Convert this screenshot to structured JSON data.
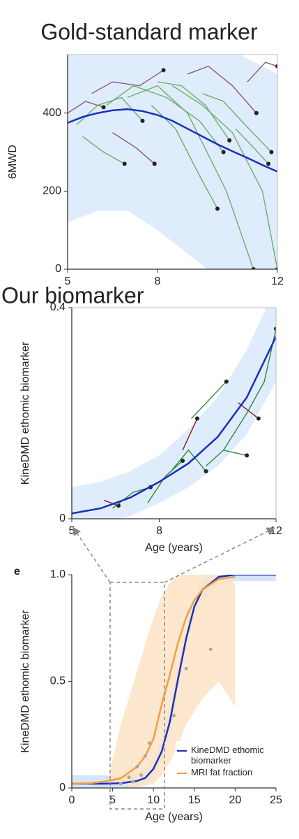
{
  "chart_data": [
    {
      "type": "line",
      "title": "Gold-standard marker",
      "ylabel": "6MWD",
      "xlim": [
        5,
        12
      ],
      "xticks": [
        5,
        8,
        12
      ],
      "ylim": [
        0,
        550
      ],
      "yticks": [
        0,
        200,
        400
      ],
      "frame": true,
      "end_markers": true,
      "band": {
        "color": "#d9e9fa",
        "x": [
          5,
          6,
          7,
          8,
          9,
          10,
          11,
          12
        ],
        "lower": [
          120,
          150,
          150,
          100,
          40,
          -20,
          -60,
          -80
        ],
        "upper": [
          620,
          650,
          660,
          650,
          620,
          580,
          540,
          500
        ]
      },
      "fit": {
        "color": "#1a2fc0",
        "x": [
          5,
          5.5,
          6,
          6.5,
          7,
          7.5,
          8,
          8.5,
          9,
          9.5,
          10,
          10.5,
          11,
          11.5,
          12
        ],
        "values": [
          375,
          390,
          400,
          407,
          410,
          405,
          395,
          380,
          360,
          340,
          320,
          302,
          285,
          267,
          250
        ]
      },
      "series": [
        {
          "color": "#8b5a7c",
          "x": [
            5,
            5.6,
            6.2
          ],
          "values": [
            400,
            430,
            415
          ]
        },
        {
          "color": "#6cae6c",
          "x": [
            5.3,
            6,
            6.8,
            7.5
          ],
          "values": [
            370,
            420,
            440,
            380
          ]
        },
        {
          "color": "#8b5a7c",
          "x": [
            5.8,
            6.5,
            7.4,
            8.2
          ],
          "values": [
            450,
            480,
            470,
            510
          ]
        },
        {
          "color": "#6cae6c",
          "x": [
            6.3,
            7.2,
            8.3,
            9.4,
            10.2
          ],
          "values": [
            420,
            470,
            440,
            380,
            300
          ]
        },
        {
          "color": "#6cae6c",
          "x": [
            7,
            8,
            9,
            10.3,
            11.2
          ],
          "values": [
            440,
            470,
            400,
            200,
            0
          ]
        },
        {
          "color": "#6cae6c",
          "x": [
            8,
            8.8,
            9.6,
            10.4
          ],
          "values": [
            480,
            470,
            420,
            330
          ]
        },
        {
          "color": "#8b5a7c",
          "x": [
            9,
            9.7,
            10.5,
            11.3
          ],
          "values": [
            500,
            520,
            470,
            400
          ]
        },
        {
          "color": "#6cae6c",
          "x": [
            9.5,
            10.2,
            10.8,
            11.8
          ],
          "values": [
            450,
            430,
            380,
            300
          ]
        },
        {
          "color": "#6cae6c",
          "x": [
            7.8,
            8.6,
            9.4,
            10
          ],
          "values": [
            420,
            360,
            240,
            155
          ]
        },
        {
          "color": "#8b5a7c",
          "x": [
            11,
            11.6,
            12
          ],
          "values": [
            480,
            530,
            520
          ]
        },
        {
          "color": "#6cae6c",
          "x": [
            5.5,
            6.2,
            6.9
          ],
          "values": [
            340,
            300,
            270
          ]
        },
        {
          "color": "#8b5a7c",
          "x": [
            6.5,
            7.3,
            7.9
          ],
          "values": [
            350,
            310,
            270
          ]
        },
        {
          "color": "#6cae6c",
          "x": [
            10.6,
            11.1,
            11.7
          ],
          "values": [
            360,
            320,
            270
          ]
        },
        {
          "color": "#6cae6c",
          "x": [
            8.5,
            9.5,
            10.5,
            11.5,
            12
          ],
          "values": [
            470,
            420,
            350,
            200,
            0
          ]
        }
      ]
    },
    {
      "type": "line",
      "title": "Our biomarker",
      "ylabel": "KineDMD ethomic biomarker",
      "xlabel": "Age (years)",
      "xlim": [
        5,
        12
      ],
      "xticks": [
        5,
        8,
        12
      ],
      "ylim": [
        0,
        0.4
      ],
      "yticks": [
        0,
        0.4
      ],
      "frame": true,
      "end_markers": true,
      "band": {
        "color": "#d9e9fa",
        "x": [
          5,
          6,
          7,
          8,
          9,
          10,
          11,
          12
        ],
        "lower": [
          -0.02,
          -0.01,
          0.005,
          0.03,
          0.06,
          0.1,
          0.16,
          0.26
        ],
        "upper": [
          0.06,
          0.07,
          0.09,
          0.12,
          0.17,
          0.23,
          0.32,
          0.44
        ]
      },
      "fit": {
        "color": "#1a2fc0",
        "x": [
          5,
          6,
          7,
          8,
          9,
          10,
          11,
          12
        ],
        "values": [
          0.01,
          0.02,
          0.04,
          0.07,
          0.105,
          0.155,
          0.23,
          0.345
        ]
      },
      "series": [
        {
          "color": "#8b1a1a",
          "x": [
            6.1,
            6.6
          ],
          "values": [
            0.035,
            0.025
          ]
        },
        {
          "color": "#2e8b2e",
          "x": [
            6.4,
            7.1,
            7.7
          ],
          "values": [
            0.02,
            0.05,
            0.06
          ]
        },
        {
          "color": "#2e8b2e",
          "x": [
            7.6,
            8.2,
            8.8
          ],
          "values": [
            0.03,
            0.08,
            0.11
          ]
        },
        {
          "color": "#2e8b2e",
          "x": [
            8.4,
            9,
            9.6
          ],
          "values": [
            0.09,
            0.13,
            0.09
          ]
        },
        {
          "color": "#8b1a1a",
          "x": [
            8.8,
            9.3
          ],
          "values": [
            0.13,
            0.19
          ]
        },
        {
          "color": "#2e8b2e",
          "x": [
            9.1,
            10.3
          ],
          "values": [
            0.19,
            0.26
          ]
        },
        {
          "color": "#2e8b2e",
          "x": [
            9.6,
            10.2,
            11
          ],
          "values": [
            0.1,
            0.13,
            0.12
          ]
        },
        {
          "color": "#8b1a1a",
          "x": [
            10.7,
            11.4
          ],
          "values": [
            0.22,
            0.19
          ]
        },
        {
          "color": "#2e8b2e",
          "x": [
            10.2,
            11,
            11.6,
            12
          ],
          "values": [
            0.13,
            0.2,
            0.26,
            0.36
          ]
        }
      ]
    },
    {
      "type": "line",
      "panel_label": "e",
      "ylabel": "KineDMD ethomic biomarker",
      "xlabel": "Age (years)",
      "xlim": [
        0,
        25
      ],
      "xticks": [
        0,
        5,
        10,
        15,
        20,
        25
      ],
      "ylim": [
        0,
        1
      ],
      "yticks": [
        0,
        0.5,
        {
          "value": 1,
          "label": "1.0"
        }
      ],
      "frame": false,
      "end_markers": false,
      "points": {
        "color": "#a8a8a8",
        "x": [
          6,
          7,
          7.5,
          8,
          8.5,
          9,
          9.5,
          12.5,
          14,
          17
        ],
        "values": [
          0.02,
          0.05,
          0.03,
          0.1,
          0.06,
          0.15,
          0.21,
          0.34,
          0.56,
          0.65
        ]
      },
      "series": [
        {
          "name": "KineDMD ethomic biomarker",
          "color": "#1a2fc0",
          "x": [
            0,
            2,
            4,
            6,
            8,
            9,
            10,
            11,
            12,
            13,
            14,
            15,
            16,
            18,
            20,
            25
          ],
          "values": [
            0.02,
            0.02,
            0.02,
            0.022,
            0.033,
            0.047,
            0.09,
            0.17,
            0.31,
            0.51,
            0.7,
            0.85,
            0.93,
            0.99,
            1,
            1
          ],
          "band": {
            "color": "#cfe2f8",
            "x": [
              0,
              2,
              4,
              6,
              8,
              9,
              10,
              11,
              12,
              13,
              14,
              15,
              16,
              18,
              20,
              25
            ],
            "lower": [
              0,
              0,
              0,
              0,
              0.005,
              0.02,
              0.05,
              0.12,
              0.25,
              0.45,
              0.64,
              0.8,
              0.88,
              0.95,
              0.97,
              0.97
            ],
            "upper": [
              0.06,
              0.06,
              0.06,
              0.06,
              0.07,
              0.09,
              0.14,
              0.23,
              0.38,
              0.58,
              0.77,
              0.9,
              0.97,
              1.02,
              1.02,
              1
            ]
          }
        },
        {
          "name": "MRI fat fraction",
          "color": "#f0a040",
          "x": [
            0,
            2,
            4,
            6,
            8,
            9,
            10,
            11,
            12,
            13,
            14,
            15,
            16,
            18,
            20
          ],
          "values": [
            0.02,
            0.022,
            0.03,
            0.045,
            0.1,
            0.15,
            0.23,
            0.39,
            0.53,
            0.68,
            0.8,
            0.88,
            0.93,
            0.98,
            0.99
          ],
          "band": {
            "color": "#fde3c6",
            "x": [
              4.5,
              6,
              8,
              10,
              11,
              12,
              13,
              14,
              16,
              18,
              20
            ],
            "lower": [
              0.02,
              0.02,
              0,
              0.02,
              0.06,
              0.12,
              0.2,
              0.3,
              0.42,
              0.5,
              0.38
            ],
            "upper": [
              0.05,
              0.3,
              0.55,
              0.8,
              0.9,
              0.96,
              1,
              1,
              1,
              1,
              0.96
            ]
          }
        }
      ]
    }
  ]
}
